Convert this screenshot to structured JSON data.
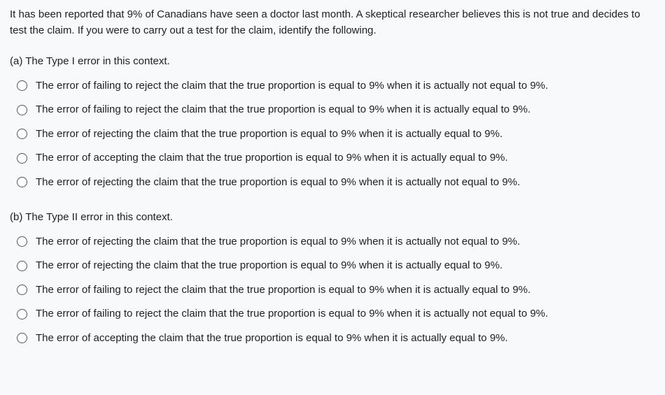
{
  "intro": "It has been reported that 9% of Canadians have seen a doctor last month. A skeptical researcher believes this is not true and decides to test the claim. If you were to carry out a test for the claim, identify the following.",
  "partA": {
    "label": "(a) The Type I error in this context.",
    "options": [
      "The error of failing to reject the claim that the true proportion is equal to 9% when it is actually not equal to 9%.",
      "The error of failing to reject the claim that the true proportion is equal to 9% when it is actually equal to 9%.",
      "The error of rejecting the claim that the true proportion is equal to 9% when it is actually equal to 9%.",
      "The error of accepting the claim that the true proportion is equal to 9% when it is actually equal to 9%.",
      "The error of rejecting the claim that the true proportion is equal to 9% when it is actually not equal to 9%."
    ]
  },
  "partB": {
    "label": "(b) The Type II error in this context.",
    "options": [
      "The error of rejecting the claim that the true proportion is equal to 9% when it is actually not equal to 9%.",
      "The error of rejecting the claim that the true proportion is equal to 9% when it is actually equal to 9%.",
      "The error of failing to reject the claim that the true proportion is equal to 9% when it is actually equal to 9%.",
      "The error of failing to reject the claim that the true proportion is equal to 9% when it is actually not equal to 9%.",
      "The error of accepting the claim that the true proportion is equal to 9% when it is actually equal to 9%."
    ]
  }
}
